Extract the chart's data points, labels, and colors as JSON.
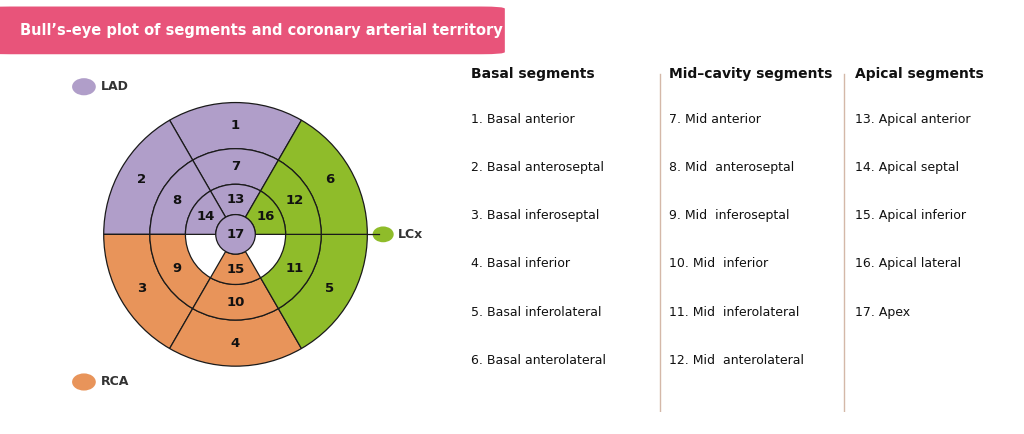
{
  "title": "Bull’s-eye plot of segments and coronary arterial territory",
  "title_bg": "#e8547a",
  "title_color": "#ffffff",
  "bg_color": "#ffffff",
  "segment_colors": {
    "1": "#b09ec9",
    "2": "#b09ec9",
    "3": "#e8945a",
    "4": "#e8945a",
    "5": "#8fbc2a",
    "6": "#8fbc2a",
    "7": "#b09ec9",
    "8": "#b09ec9",
    "9": "#e8945a",
    "10": "#e8945a",
    "11": "#8fbc2a",
    "12": "#8fbc2a",
    "13": "#b09ec9",
    "14": "#b09ec9",
    "15": "#e8945a",
    "16": "#8fbc2a",
    "17": "#b09ec9"
  },
  "lad_color": "#b09ec9",
  "lcx_color": "#8fbc2a",
  "rca_color": "#e8945a",
  "basal_header": "Basal segments",
  "basal_items": [
    "1. Basal anterior",
    "2. Basal anteroseptal",
    "3. Basal inferoseptal",
    "4. Basal inferior",
    "5. Basal inferolateral",
    "6. Basal anterolateral"
  ],
  "mid_header": "Mid–cavity segments",
  "mid_items": [
    "7. Mid anterior",
    "8. Mid  anteroseptal",
    "9. Mid  inferoseptal",
    "10. Mid  inferior",
    "11. Mid  inferolateral",
    "12. Mid  anterolateral"
  ],
  "apical_header": "Apical segments",
  "apical_items": [
    "13. Apical anterior",
    "14. Apical septal",
    "15. Apical inferior",
    "16. Apical lateral",
    "17. Apex"
  ]
}
